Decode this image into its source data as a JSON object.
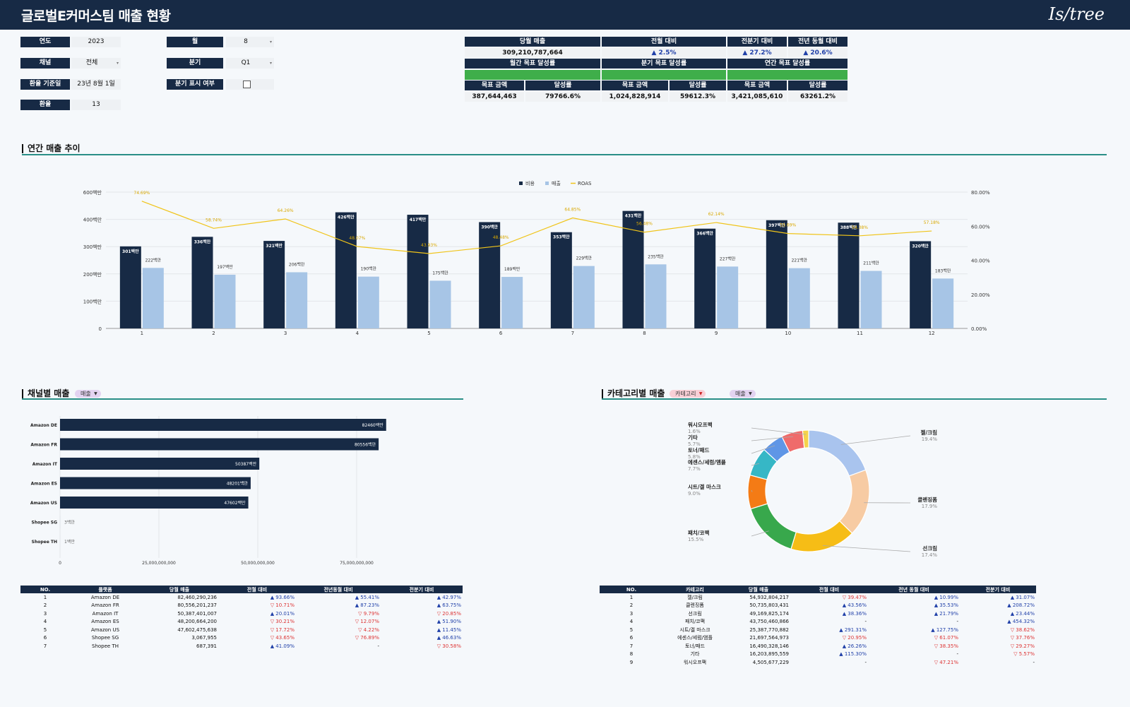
{
  "app": {
    "title": "글로벌E커머스팀 매출 현황",
    "logo": "Is/tree"
  },
  "filters": [
    {
      "label": "연도",
      "value": "2023",
      "dropdown": false
    },
    {
      "label": "채널",
      "value": "전체",
      "dropdown": true
    },
    {
      "label": "환율 기준일",
      "value": "23년 8월 1일",
      "dropdown": false
    },
    {
      "label": "환율",
      "value": "13",
      "dropdown": false
    },
    {
      "label": "월",
      "value": "8",
      "dropdown": true
    },
    {
      "label": "분기",
      "value": "Q1",
      "dropdown": true
    },
    {
      "label": "분기 표시 여부",
      "checked": false
    }
  ],
  "kpi": {
    "monthly_sales_label": "당월 매출",
    "monthly_sales": "309,210,787,664",
    "mom_label": "전월 대비",
    "mom": "▲ 2.5%",
    "qoq_label": "전분기 대비",
    "qoq": "▲ 27.2%",
    "yoy_label": "전년 동월 대비",
    "yoy": "▲ 20.6%",
    "monthly_goal_label": "월간 목표 달성률",
    "quarter_goal_label": "분기 목표 달성률",
    "annual_goal_label": "연간 목표 달성률",
    "goal_amount_label": "목표 금액",
    "achievement_label": "달성률",
    "monthly_goal_amount": "387,644,463",
    "monthly_achievement": "79766.6%",
    "monthly_achievement_frac": 1.0,
    "quarter_goal_amount": "1,024,828,914",
    "quarter_achievement": "59612.3%",
    "quarter_achievement_frac": 1.0,
    "annual_goal_amount": "3,421,085,610",
    "annual_achievement": "63261.2%",
    "annual_achievement_frac": 1.0
  },
  "sections": {
    "annual_trend": "연간 매출 추이",
    "channel_sales": "채널별 매출",
    "channel_metric_dropdown": "매출",
    "category_sales": "카테고리별 매출",
    "category_dropdown": "카테고리",
    "category_metric_dropdown": "매출"
  },
  "colors": {
    "navy": "#172a45",
    "light_blue": "#a7c5e6",
    "roas": "#f0c419",
    "green": "#3fae4a",
    "accent_line": "#2a8f87"
  },
  "chart_data": [
    {
      "type": "bar",
      "name": "annual_trend",
      "categories": [
        "1",
        "2",
        "3",
        "4",
        "5",
        "6",
        "7",
        "8",
        "9",
        "10",
        "11",
        "12"
      ],
      "series": [
        {
          "name": "비용",
          "values": [
            301,
            336,
            321,
            426,
            417,
            390,
            353,
            431,
            366,
            397,
            388,
            320
          ],
          "labels": [
            "301백만",
            "336백만",
            "321백만",
            "426백만",
            "417백만",
            "390백만",
            "353백만",
            "431백만",
            "366백만",
            "397백만",
            "388백만",
            "320백만"
          ]
        },
        {
          "name": "매출",
          "values": [
            222,
            197,
            206,
            190,
            175,
            189,
            229,
            235,
            227,
            221,
            211,
            183
          ],
          "labels": [
            "222백만",
            "197백만",
            "206백만",
            "190백만",
            "175백만",
            "189백만",
            "229백만",
            "235백만",
            "227백만",
            "221백만",
            "211백만",
            "183백만"
          ]
        },
        {
          "name": "ROAS",
          "type": "line",
          "axis": "right",
          "values": [
            74.69,
            58.74,
            64.26,
            48.07,
            43.93,
            48.48,
            64.85,
            56.48,
            62.14,
            55.69,
            54.38,
            57.18
          ],
          "labels": [
            "74.69%",
            "58.74%",
            "64.26%",
            "48.07%",
            "43.93%",
            "48.48%",
            "64.85%",
            "56.48%",
            "62.14%",
            "55.69%",
            "54.38%",
            "57.18%"
          ]
        }
      ],
      "y_ticks": [
        "0",
        "100백만",
        "200백만",
        "300백만",
        "400백만",
        "600백만"
      ],
      "ylim": [
        0,
        500
      ],
      "y2_ticks": [
        "0.00%",
        "20.00%",
        "40.00%",
        "60.00%",
        "80.00%"
      ],
      "y2lim": [
        0,
        80
      ],
      "legend": "top-center",
      "grid": true
    },
    {
      "type": "bar",
      "orientation": "horizontal",
      "name": "channel_sales",
      "categories": [
        "Amazon DE",
        "Amazon FR",
        "Amazon IT",
        "Amazon ES",
        "Amazon US",
        "Shopee SG",
        "Shopee TH"
      ],
      "values": [
        82460,
        80556,
        50387,
        48201,
        47602,
        3,
        1
      ],
      "labels": [
        "82460백만",
        "80556백만",
        "50387백만",
        "48201백만",
        "47602백만",
        "3백만",
        "1백만"
      ],
      "x_ticks": [
        "0",
        "25,000,000,000",
        "50,000,000,000",
        "75,000,000,000"
      ],
      "xlim": [
        0,
        100000
      ],
      "grid": true
    },
    {
      "type": "pie",
      "donut": true,
      "name": "category_sales",
      "slices": [
        {
          "name": "젤/크림",
          "pct": "19.4%",
          "value": 19.4,
          "color": "#a9c4ee"
        },
        {
          "name": "클렌징폼",
          "pct": "17.9%",
          "value": 17.9,
          "color": "#f7cba3"
        },
        {
          "name": "선크림",
          "pct": "17.4%",
          "value": 17.4,
          "color": "#f6bd16"
        },
        {
          "name": "패치/코팩",
          "pct": "15.5%",
          "value": 15.5,
          "color": "#38a84c"
        },
        {
          "name": "시트/겔 마스크",
          "pct": "9.0%",
          "value": 9.0,
          "color": "#f47b15"
        },
        {
          "name": "에센스/세럼/앰플",
          "pct": "7.7%",
          "value": 7.7,
          "color": "#36b7c6"
        },
        {
          "name": "토너/패드",
          "pct": "5.8%",
          "value": 5.8,
          "color": "#5f96e6"
        },
        {
          "name": "기타",
          "pct": "5.7%",
          "value": 5.7,
          "color": "#ef6b6b"
        },
        {
          "name": "워시오프팩",
          "pct": "1.6%",
          "value": 1.6,
          "color": "#f5d24a"
        }
      ]
    }
  ],
  "channel_table": {
    "headers": [
      "NO.",
      "플랫폼",
      "당월 매출",
      "전월 대비",
      "전년동월 대비",
      "전분기 대비"
    ],
    "rows": [
      [
        "1",
        "Amazon DE",
        "82,460,290,236",
        "▲ 93.66%",
        "▲ 55.41%",
        "▲ 42.97%"
      ],
      [
        "2",
        "Amazon FR",
        "80,556,201,237",
        "▽ 10.71%",
        "▲ 87.23%",
        "▲ 63.75%"
      ],
      [
        "3",
        "Amazon IT",
        "50,387,401,007",
        "▲ 20.01%",
        "▽ 9.79%",
        "▽ 20.85%"
      ],
      [
        "4",
        "Amazon ES",
        "48,200,664,200",
        "▽ 30.21%",
        "▽ 12.07%",
        "▲ 51.90%"
      ],
      [
        "5",
        "Amazon US",
        "47,602,475,638",
        "▽ 17.72%",
        "▽ 4.22%",
        "▲ 11.45%"
      ],
      [
        "6",
        "Shopee SG",
        "3,067,955",
        "▽ 43.65%",
        "▽ 76.89%",
        "▲ 46.63%"
      ],
      [
        "7",
        "Shopee TH",
        "687,391",
        "▲ 41.09%",
        "-",
        "▽ 30.58%"
      ]
    ]
  },
  "category_table": {
    "headers": [
      "NO.",
      "카테고리",
      "당월 매출",
      "전월 대비",
      "전년 동월 대비",
      "전분기 대비"
    ],
    "rows": [
      [
        "1",
        "젤/크림",
        "54,932,804,217",
        "▽ 39.47%",
        "▲ 10.99%",
        "▲ 31.07%"
      ],
      [
        "2",
        "클렌징폼",
        "50,735,803,431",
        "▲ 43.56%",
        "▲ 35.53%",
        "▲ 208.72%"
      ],
      [
        "3",
        "선크림",
        "49,169,825,174",
        "▲ 38.36%",
        "▲ 21.79%",
        "▲ 23.44%"
      ],
      [
        "4",
        "패치/코팩",
        "43,750,460,866",
        "-",
        "-",
        "▲ 454.32%"
      ],
      [
        "5",
        "시트/겔 마스크",
        "25,387,770,882",
        "▲ 291.31%",
        "▲ 127.75%",
        "▽ 38.62%"
      ],
      [
        "6",
        "에센스/세럼/앰플",
        "21,697,564,973",
        "▽ 20.95%",
        "▽ 61.07%",
        "▽ 37.76%"
      ],
      [
        "7",
        "토너/패드",
        "16,490,328,146",
        "▲ 26.26%",
        "▽ 38.35%",
        "▽ 29.27%"
      ],
      [
        "8",
        "기타",
        "16,203,895,559",
        "▲ 115.30%",
        "-",
        "▽ 5.57%"
      ],
      [
        "9",
        "워시오프팩",
        "4,505,677,229",
        "-",
        "▽ 47.21%",
        "-"
      ]
    ]
  }
}
